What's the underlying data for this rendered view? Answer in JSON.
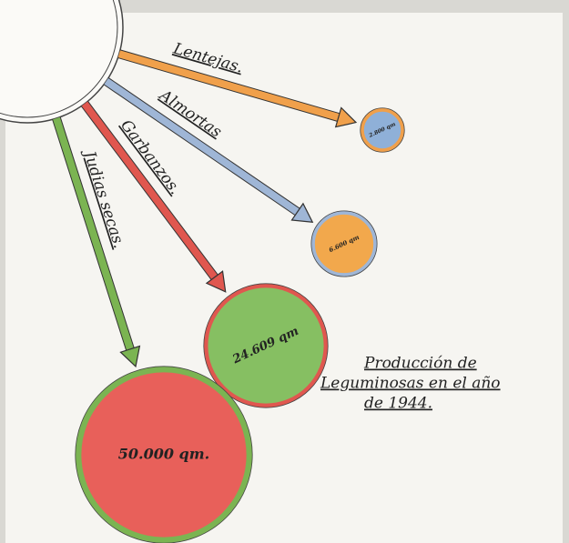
{
  "chart_data": {
    "type": "bubble-flow",
    "title": [
      "Producción de",
      "Leguminosas en el año",
      "de 1944."
    ],
    "categories": [
      "Lentejas.",
      "Almortas",
      "Garbanzos.",
      "Judias secas."
    ],
    "values": [
      2800,
      6600,
      24609,
      50000
    ],
    "value_labels": [
      "2.800 qm",
      "6.600 qm",
      "24.609 qm",
      "50.000 qm."
    ],
    "arrow_colors": [
      "#f0a04b",
      "#9fb6d6",
      "#e0574f",
      "#7bb452"
    ],
    "fill_colors": [
      "#8fb0d8",
      "#f2a84c",
      "#86bf62",
      "#e8605a"
    ],
    "ring_colors": [
      "#f0a04b",
      "#9fb6d6",
      "#e0574f",
      "#7bb452"
    ]
  }
}
